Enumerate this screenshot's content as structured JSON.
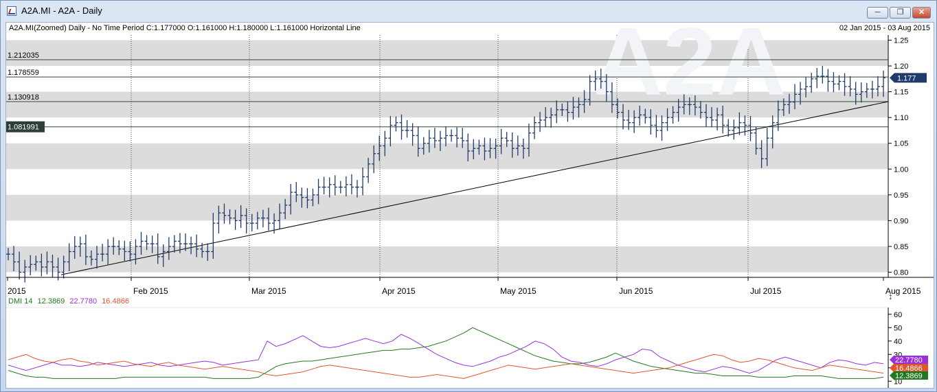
{
  "window": {
    "title": "A2A.MI - A2A - Daily",
    "minimize_icon": "minimize-icon",
    "maximize_icon": "maximize-icon",
    "close_icon": "close-icon"
  },
  "price_panel": {
    "info": "A2A.MI(Zoomed) Daily -  No Time Period   C:1.177000 O:1.161000 H:1.180000 L:1.161000 Horizontal Line",
    "date_range": "02 Jan 2015   -  03 Aug 2015",
    "watermark": "A2A",
    "last_price": "1.177",
    "horizontal_lines": [
      {
        "label": "1.212035",
        "value": 1.212035,
        "highlight": false
      },
      {
        "label": "1.178559",
        "value": 1.178559,
        "highlight": false
      },
      {
        "label": "1.130918",
        "value": 1.130918,
        "highlight": false
      },
      {
        "label": "1.081991",
        "value": 1.081991,
        "highlight": true
      }
    ]
  },
  "dmi_panel": {
    "label": "DMI 14",
    "adx": "12.3869",
    "plus_di": "22.7780",
    "minus_di": "16.4866",
    "colors": {
      "adx": "#1f7a1f",
      "plus_di": "#9b30d9",
      "minus_di": "#e0552a"
    }
  },
  "chart_data": [
    {
      "type": "ohlc",
      "title": "A2A.MI(Zoomed) Daily",
      "x_range": [
        "2015-01-02",
        "2015-08-03"
      ],
      "x_ticks": [
        "2015",
        "Feb 2015",
        "Mar 2015",
        "Apr 2015",
        "May 2015",
        "Jun 2015",
        "Jul 2015",
        "Aug 2015"
      ],
      "y_ticks": [
        "0.80",
        "0.85",
        "0.90",
        "0.95",
        "1.00",
        "1.05",
        "1.10",
        "1.15",
        "1.20",
        "1.25"
      ],
      "ylim": [
        0.79,
        1.26
      ],
      "closes": [
        0.835,
        0.82,
        0.8,
        0.81,
        0.815,
        0.82,
        0.81,
        0.82,
        0.81,
        0.8,
        0.82,
        0.84,
        0.85,
        0.855,
        0.83,
        0.825,
        0.835,
        0.835,
        0.85,
        0.85,
        0.845,
        0.84,
        0.835,
        0.85,
        0.86,
        0.855,
        0.855,
        0.83,
        0.84,
        0.85,
        0.86,
        0.855,
        0.855,
        0.855,
        0.845,
        0.84,
        0.84,
        0.895,
        0.915,
        0.91,
        0.905,
        0.9,
        0.91,
        0.895,
        0.895,
        0.905,
        0.905,
        0.895,
        0.9,
        0.915,
        0.93,
        0.955,
        0.95,
        0.945,
        0.94,
        0.95,
        0.965,
        0.965,
        0.97,
        0.965,
        0.965,
        0.97,
        0.965,
        0.965,
        0.985,
        1.01,
        1.03,
        1.045,
        1.06,
        1.085,
        1.09,
        1.075,
        1.075,
        1.065,
        1.04,
        1.05,
        1.06,
        1.055,
        1.06,
        1.065,
        1.065,
        1.06,
        1.055,
        1.035,
        1.04,
        1.045,
        1.035,
        1.04,
        1.045,
        1.06,
        1.055,
        1.04,
        1.045,
        1.04,
        1.07,
        1.09,
        1.095,
        1.1,
        1.105,
        1.115,
        1.115,
        1.11,
        1.12,
        1.125,
        1.135,
        1.17,
        1.175,
        1.17,
        1.15,
        1.125,
        1.11,
        1.095,
        1.09,
        1.1,
        1.105,
        1.1,
        1.085,
        1.075,
        1.09,
        1.1,
        1.11,
        1.12,
        1.125,
        1.125,
        1.12,
        1.11,
        1.1,
        1.095,
        1.105,
        1.085,
        1.075,
        1.08,
        1.09,
        1.085,
        1.07,
        1.04,
        1.02,
        1.06,
        1.09,
        1.115,
        1.125,
        1.13,
        1.145,
        1.155,
        1.16,
        1.175,
        1.18,
        1.18,
        1.17,
        1.165,
        1.17,
        1.16,
        1.155,
        1.145,
        1.15,
        1.155,
        1.155,
        1.16,
        1.177
      ],
      "overlays": [
        "Horizontal Line",
        "trend line"
      ]
    },
    {
      "type": "line",
      "title": "DMI 14",
      "y_ticks": [
        "10",
        "20",
        "30",
        "40",
        "50",
        "60"
      ],
      "ylim": [
        5,
        65
      ],
      "series": [
        {
          "name": "ADX",
          "last": "12.3869",
          "values": [
            18,
            16,
            14,
            13,
            13,
            12,
            12,
            12,
            12,
            12,
            12,
            12,
            12,
            13,
            13,
            13,
            13,
            13,
            13,
            13,
            13,
            13,
            13,
            12,
            12,
            12,
            12,
            12,
            13,
            17,
            21,
            23,
            24,
            25,
            25,
            26,
            27,
            28,
            29,
            30,
            31,
            32,
            33,
            33,
            34,
            34,
            35,
            36,
            38,
            40,
            43,
            46,
            50,
            47,
            44,
            41,
            38,
            35,
            32,
            29,
            27,
            25,
            24,
            23,
            23,
            24,
            26,
            28,
            31,
            28,
            25,
            23,
            21,
            20,
            19,
            18,
            17,
            16,
            16,
            15,
            14,
            14,
            14,
            14,
            13,
            13,
            13,
            13,
            14,
            14,
            14,
            14,
            13,
            12,
            12,
            12,
            12,
            12,
            13
          ]
        },
        {
          "name": "+DI",
          "last": "22.7780",
          "values": [
            22,
            20,
            18,
            20,
            22,
            24,
            22,
            22,
            21,
            22,
            24,
            23,
            22,
            21,
            22,
            23,
            24,
            22,
            21,
            22,
            23,
            24,
            25,
            24,
            22,
            23,
            24,
            25,
            26,
            40,
            36,
            38,
            41,
            44,
            40,
            36,
            35,
            36,
            38,
            40,
            42,
            40,
            38,
            40,
            45,
            42,
            38,
            34,
            30,
            27,
            24,
            22,
            21,
            23,
            25,
            28,
            30,
            33,
            36,
            40,
            38,
            34,
            28,
            25,
            24,
            22,
            21,
            23,
            26,
            28,
            30,
            34,
            33,
            28,
            25,
            22,
            20,
            18,
            17,
            19,
            21,
            20,
            18,
            16,
            18,
            22,
            26,
            28,
            26,
            24,
            22,
            20,
            24,
            26,
            25,
            23,
            22,
            24,
            23
          ]
        },
        {
          "name": "-DI",
          "last": "16.4866",
          "values": [
            26,
            28,
            30,
            27,
            25,
            24,
            26,
            27,
            25,
            24,
            22,
            23,
            24,
            25,
            23,
            22,
            21,
            23,
            24,
            22,
            21,
            20,
            19,
            20,
            21,
            20,
            19,
            18,
            17,
            15,
            14,
            15,
            16,
            17,
            19,
            21,
            22,
            21,
            20,
            19,
            18,
            17,
            16,
            15,
            14,
            13,
            13,
            14,
            15,
            14,
            13,
            12,
            14,
            16,
            18,
            20,
            22,
            21,
            20,
            19,
            20,
            21,
            22,
            23,
            22,
            21,
            20,
            19,
            18,
            17,
            16,
            17,
            18,
            19,
            20,
            22,
            24,
            26,
            28,
            30,
            29,
            26,
            24,
            25,
            27,
            26,
            24,
            22,
            20,
            19,
            18,
            20,
            22,
            21,
            20,
            19,
            18,
            17,
            16
          ]
        }
      ]
    }
  ]
}
